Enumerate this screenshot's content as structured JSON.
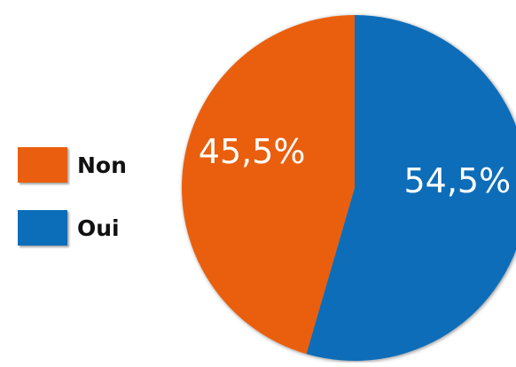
{
  "chart_data": {
    "type": "pie",
    "categories": [
      "Non",
      "Oui"
    ],
    "values": [
      45.5,
      54.5
    ],
    "data_labels": [
      "45,5%",
      "54,5%"
    ],
    "colors": [
      "#ea5f0f",
      "#0c6db9"
    ],
    "legend_position": "left",
    "title": "",
    "xlabel": "",
    "ylabel": ""
  }
}
